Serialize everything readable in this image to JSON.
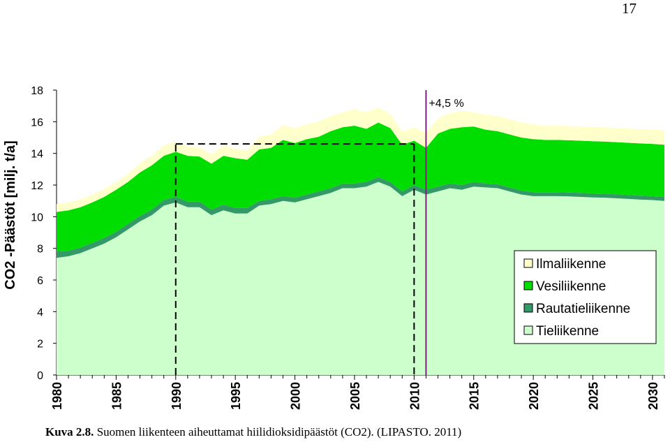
{
  "page_number": "17",
  "caption": {
    "label": "Kuva 2.8.",
    "text": " Suomen liikenteen aiheuttamat hiilidioksidipäästöt (CO2). (LIPASTO. 2011)"
  },
  "chart_data": {
    "type": "area",
    "stacked": true,
    "ylabel": "CO2 -Päästöt [milj. t/a]",
    "xlabel": "",
    "title": "",
    "ylim": [
      0,
      18
    ],
    "yticks": [
      0,
      2,
      4,
      6,
      8,
      10,
      12,
      14,
      16,
      18
    ],
    "xlim": [
      1980,
      2031
    ],
    "xticks": [
      1980,
      1985,
      1990,
      1995,
      2000,
      2005,
      2010,
      2015,
      2020,
      2025,
      2030
    ],
    "x": [
      1980,
      1981,
      1982,
      1983,
      1984,
      1985,
      1986,
      1987,
      1988,
      1989,
      1990,
      1991,
      1992,
      1993,
      1994,
      1995,
      1996,
      1997,
      1998,
      1999,
      2000,
      2001,
      2002,
      2003,
      2004,
      2005,
      2006,
      2007,
      2008,
      2009,
      2010,
      2011,
      2012,
      2013,
      2014,
      2015,
      2016,
      2017,
      2018,
      2019,
      2020,
      2021,
      2022,
      2023,
      2024,
      2025,
      2026,
      2027,
      2028,
      2029,
      2030,
      2031
    ],
    "series": [
      {
        "name": "Tieliikenne",
        "color": "#ccffcc",
        "values": [
          7.4,
          7.5,
          7.7,
          8.0,
          8.3,
          8.7,
          9.2,
          9.7,
          10.1,
          10.7,
          10.9,
          10.6,
          10.6,
          10.1,
          10.4,
          10.2,
          10.2,
          10.7,
          10.8,
          11.0,
          10.9,
          11.1,
          11.3,
          11.5,
          11.8,
          11.8,
          11.9,
          12.2,
          11.9,
          11.3,
          11.7,
          11.4,
          11.6,
          11.8,
          11.7,
          11.9,
          11.85,
          11.8,
          11.6,
          11.4,
          11.3,
          11.3,
          11.3,
          11.28,
          11.25,
          11.22,
          11.2,
          11.16,
          11.12,
          11.08,
          11.05,
          11.0
        ]
      },
      {
        "name": "Rautatieliikenne",
        "color": "#339966",
        "values": [
          0.4,
          0.35,
          0.35,
          0.35,
          0.35,
          0.35,
          0.35,
          0.35,
          0.35,
          0.35,
          0.35,
          0.35,
          0.35,
          0.35,
          0.35,
          0.35,
          0.35,
          0.3,
          0.3,
          0.3,
          0.3,
          0.3,
          0.3,
          0.3,
          0.3,
          0.3,
          0.3,
          0.3,
          0.3,
          0.3,
          0.3,
          0.3,
          0.3,
          0.3,
          0.3,
          0.3,
          0.25,
          0.25,
          0.25,
          0.25,
          0.25,
          0.25,
          0.25,
          0.25,
          0.25,
          0.25,
          0.25,
          0.25,
          0.25,
          0.25,
          0.25,
          0.25
        ]
      },
      {
        "name": "Vesiliikenne",
        "color": "#00dd00",
        "values": [
          2.5,
          2.55,
          2.55,
          2.55,
          2.6,
          2.65,
          2.65,
          2.75,
          2.8,
          2.8,
          2.85,
          2.9,
          2.85,
          2.9,
          3.1,
          3.15,
          3.05,
          3.25,
          3.25,
          3.55,
          3.45,
          3.5,
          3.45,
          3.6,
          3.55,
          3.65,
          3.35,
          3.45,
          3.4,
          2.95,
          2.8,
          2.65,
          3.35,
          3.45,
          3.65,
          3.5,
          3.4,
          3.35,
          3.35,
          3.35,
          3.35,
          3.3,
          3.3,
          3.3,
          3.3,
          3.3,
          3.3,
          3.3,
          3.3,
          3.3,
          3.3,
          3.3
        ]
      },
      {
        "name": "Ilmaliikenne",
        "color": "#ffffcc",
        "values": [
          0.5,
          0.5,
          0.5,
          0.5,
          0.5,
          0.5,
          0.5,
          0.6,
          0.6,
          0.65,
          0.65,
          0.6,
          0.6,
          0.6,
          0.65,
          0.6,
          0.6,
          0.8,
          0.85,
          0.95,
          0.95,
          0.95,
          0.95,
          0.95,
          0.95,
          1.05,
          1.05,
          0.95,
          0.9,
          0.85,
          0.85,
          0.95,
          0.95,
          1.0,
          1.05,
          0.9,
          0.95,
          0.95,
          0.95,
          0.95,
          0.95,
          0.9,
          0.9,
          0.9,
          0.9,
          0.9,
          0.9,
          0.9,
          0.9,
          0.9,
          0.9,
          0.9
        ]
      }
    ],
    "legend": {
      "placement": "lower-right",
      "entries": [
        "Ilmaliikenne",
        "Vesiliikenne",
        "Rautatieliikenne",
        "Tieliikenne"
      ]
    },
    "reference_box": {
      "x_start": 1990,
      "x_end": 2010,
      "y": 14.6
    },
    "marker_line": {
      "x": 2011,
      "color": "#7f1f7f",
      "label": "+4,5 %"
    },
    "grid": false
  }
}
